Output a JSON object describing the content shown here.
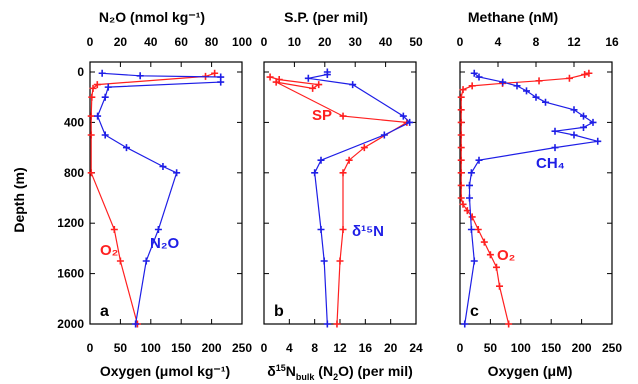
{
  "colors": {
    "red": "#ff2020",
    "blue": "#1e1ee6",
    "axis": "#000000"
  },
  "y_axis": {
    "label": "Depth (m)",
    "ticks": [
      "0",
      "400",
      "800",
      "1200",
      "1600",
      "2000"
    ],
    "ylim": [
      0,
      2000
    ],
    "inverted": true
  },
  "panels": [
    {
      "letter": "a",
      "top_title": "N₂O (nmol kg⁻¹)",
      "top_ticks": [
        "0",
        "20",
        "40",
        "60",
        "80",
        "100"
      ],
      "top_lim": [
        0,
        100
      ],
      "bottom_title": "Oxygen (μmol kg⁻¹)",
      "bottom_ticks": [
        "0",
        "50",
        "100",
        "150",
        "200",
        "250"
      ],
      "bottom_lim": [
        0,
        250
      ],
      "annotations": {
        "o2": "O₂",
        "n2o": "N₂O"
      }
    },
    {
      "letter": "b",
      "top_title": "S.P. (per mil)",
      "top_ticks": [
        "0",
        "10",
        "20",
        "30",
        "40",
        "50"
      ],
      "top_lim": [
        0,
        50
      ],
      "bottom_title": "δ¹⁵N_bulk (N₂O) (per mil)",
      "bottom_ticks": [
        "0",
        "4",
        "8",
        "12",
        "16",
        "20",
        "24"
      ],
      "bottom_lim": [
        0,
        24
      ],
      "annotations": {
        "sp": "SP",
        "d15n": "δ¹⁵N"
      }
    },
    {
      "letter": "c",
      "top_title": "Methane (nM)",
      "top_ticks": [
        "0",
        "4",
        "8",
        "12",
        "16"
      ],
      "top_lim": [
        0,
        16
      ],
      "bottom_title": "Oxygen (μM)",
      "bottom_ticks": [
        "0",
        "50",
        "100",
        "150",
        "200",
        "250"
      ],
      "bottom_lim": [
        0,
        250
      ],
      "annotations": {
        "ch4": "CH₄",
        "o2": "O₂"
      }
    }
  ],
  "chart_data": [
    {
      "type": "line",
      "panel": "a",
      "ylabel": "Depth (m)",
      "ylim": [
        0,
        2000
      ],
      "series": [
        {
          "name": "O₂",
          "color": "red",
          "x_axis": "bottom",
          "points": [
            [
              205,
              10
            ],
            [
              190,
              35
            ],
            [
              12,
              100
            ],
            [
              5,
              130
            ],
            [
              3,
              200
            ],
            [
              2,
              350
            ],
            [
              2,
              500
            ],
            [
              2,
              800
            ],
            [
              40,
              1250
            ],
            [
              50,
              1500
            ],
            [
              78,
              2000
            ]
          ]
        },
        {
          "name": "N₂O",
          "color": "blue",
          "x_axis": "top",
          "points": [
            [
              8,
              10
            ],
            [
              33,
              30
            ],
            [
              86,
              40
            ],
            [
              86,
              80
            ],
            [
              12,
              120
            ],
            [
              10,
              200
            ],
            [
              5,
              350
            ],
            [
              10,
              500
            ],
            [
              24,
              600
            ],
            [
              48,
              750
            ],
            [
              57,
              800
            ],
            [
              45,
              1250
            ],
            [
              37,
              1500
            ],
            [
              30,
              2000
            ]
          ]
        }
      ]
    },
    {
      "type": "line",
      "panel": "b",
      "ylabel": "Depth (m)",
      "ylim": [
        0,
        2000
      ],
      "series": [
        {
          "name": "SP",
          "color": "red",
          "x_axis": "top",
          "points": [
            [
              2,
              40
            ],
            [
              5,
              60
            ],
            [
              18,
              100
            ],
            [
              16,
              130
            ],
            [
              4,
              80
            ],
            [
              26,
              350
            ],
            [
              47,
              400
            ],
            [
              33,
              600
            ],
            [
              28,
              700
            ],
            [
              26,
              800
            ],
            [
              26,
              1250
            ],
            [
              25,
              1500
            ],
            [
              24,
              2000
            ]
          ]
        },
        {
          "name": "δ¹⁵N",
          "color": "blue",
          "x_axis": "bottom",
          "points": [
            [
              10,
              0
            ],
            [
              10,
              20
            ],
            [
              7,
              50
            ],
            [
              14,
              100
            ],
            [
              22,
              350
            ],
            [
              23,
              400
            ],
            [
              19,
              500
            ],
            [
              9,
              700
            ],
            [
              8,
              800
            ],
            [
              9,
              1250
            ],
            [
              9.5,
              1500
            ],
            [
              10,
              2000
            ]
          ]
        }
      ]
    },
    {
      "type": "line",
      "panel": "c",
      "ylabel": "Depth (m)",
      "ylim": [
        0,
        2000
      ],
      "series": [
        {
          "name": "O₂",
          "color": "red",
          "x_axis": "bottom",
          "points": [
            [
              212,
              10
            ],
            [
              205,
              20
            ],
            [
              180,
              50
            ],
            [
              130,
              70
            ],
            [
              70,
              90
            ],
            [
              20,
              110
            ],
            [
              5,
              140
            ],
            [
              2,
              200
            ],
            [
              2,
              300
            ],
            [
              2,
              400
            ],
            [
              2,
              500
            ],
            [
              2,
              600
            ],
            [
              2,
              700
            ],
            [
              2,
              800
            ],
            [
              2,
              900
            ],
            [
              2,
              1000
            ],
            [
              5,
              1050
            ],
            [
              12,
              1100
            ],
            [
              20,
              1150
            ],
            [
              30,
              1250
            ],
            [
              40,
              1350
            ],
            [
              50,
              1450
            ],
            [
              60,
              1550
            ],
            [
              65,
              1700
            ],
            [
              80,
              2000
            ]
          ]
        },
        {
          "name": "CH₄",
          "color": "blue",
          "x_axis": "top",
          "points": [
            [
              1.5,
              10
            ],
            [
              2,
              40
            ],
            [
              4.5,
              80
            ],
            [
              6,
              110
            ],
            [
              7,
              150
            ],
            [
              8,
              200
            ],
            [
              9,
              240
            ],
            [
              12,
              300
            ],
            [
              13,
              350
            ],
            [
              14,
              400
            ],
            [
              13,
              440
            ],
            [
              10,
              470
            ],
            [
              12,
              500
            ],
            [
              14.5,
              550
            ],
            [
              10,
              600
            ],
            [
              2,
              700
            ],
            [
              1.2,
              800
            ],
            [
              1,
              900
            ],
            [
              1,
              1000
            ],
            [
              1.2,
              1250
            ],
            [
              1.5,
              1500
            ],
            [
              0.5,
              2000
            ]
          ]
        }
      ]
    }
  ]
}
